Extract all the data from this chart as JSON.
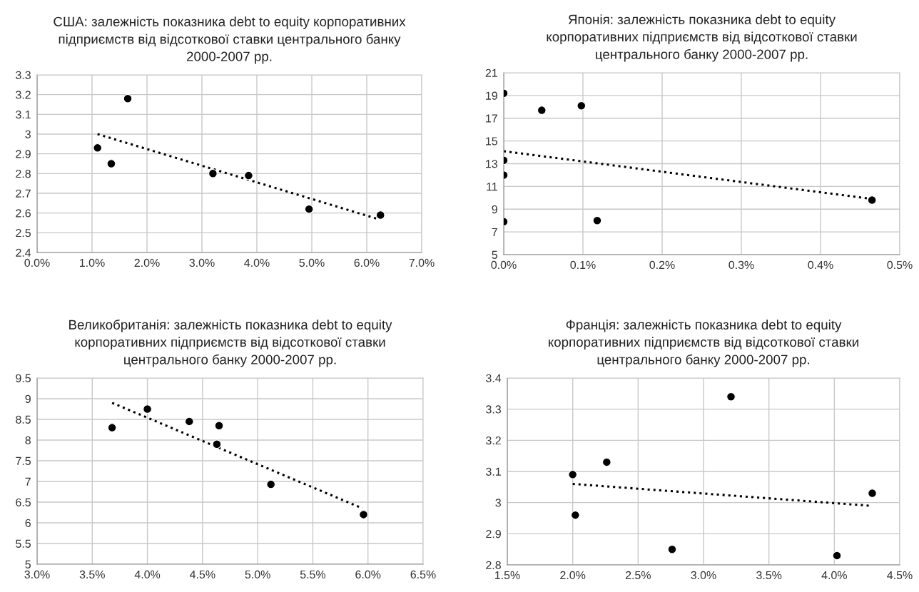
{
  "chart_data": [
    {
      "type": "scatter",
      "title": "США: залежність показника debt to equity корпоративних\nпідприємств від відсоткової ставки центрального банку\n2000-2007 рр.",
      "xlim": [
        0,
        7
      ],
      "xticks": [
        {
          "value": 0,
          "label": "0.0%"
        },
        {
          "value": 1,
          "label": "1.0%"
        },
        {
          "value": 2,
          "label": "2.0%"
        },
        {
          "value": 3,
          "label": "3.0%"
        },
        {
          "value": 4,
          "label": "4.0%"
        },
        {
          "value": 5,
          "label": "5.0%"
        },
        {
          "value": 6,
          "label": "6.0%"
        },
        {
          "value": 7,
          "label": "7.0%"
        }
      ],
      "ylim": [
        2.4,
        3.3
      ],
      "yticks": [
        2.4,
        2.5,
        2.6,
        2.7,
        2.8,
        2.9,
        3,
        3.1,
        3.2,
        3.3
      ],
      "grid": true,
      "series": [
        {
          "type": "scatter",
          "color": "#000000",
          "marker": "circle",
          "x": [
            1.1,
            1.35,
            1.65,
            3.2,
            3.85,
            4.95,
            6.25
          ],
          "values": [
            2.93,
            2.85,
            3.18,
            2.8,
            2.79,
            2.62,
            2.59
          ]
        },
        {
          "type": "line",
          "color": "#000000",
          "line_style": "dotted",
          "x": [
            1.1,
            6.2
          ],
          "values": [
            3.0,
            2.57
          ]
        }
      ]
    },
    {
      "type": "scatter",
      "title": "Японія: залежність показника debt to equity\nкорпоративних підприємств від відсоткової ставки\nцентрального банку 2000-2007 рр.",
      "xlim": [
        0,
        0.5
      ],
      "xticks": [
        {
          "value": 0,
          "label": "0.0%"
        },
        {
          "value": 0.1,
          "label": "0.1%"
        },
        {
          "value": 0.2,
          "label": "0.2%"
        },
        {
          "value": 0.3,
          "label": "0.3%"
        },
        {
          "value": 0.4,
          "label": "0.4%"
        },
        {
          "value": 0.5,
          "label": "0.5%"
        }
      ],
      "ylim": [
        5,
        21
      ],
      "yticks": [
        5,
        7,
        9,
        11,
        13,
        15,
        17,
        19,
        21
      ],
      "grid": true,
      "series": [
        {
          "type": "scatter",
          "color": "#000000",
          "marker": "circle",
          "x": [
            0,
            0,
            0,
            0,
            0.048,
            0.098,
            0.118,
            0.465
          ],
          "values": [
            19.2,
            13.3,
            12,
            7.9,
            17.7,
            18.1,
            8.0,
            9.8
          ]
        },
        {
          "type": "line",
          "color": "#000000",
          "line_style": "dotted",
          "x": [
            0,
            0.465
          ],
          "values": [
            14.1,
            9.9
          ]
        }
      ]
    },
    {
      "type": "scatter",
      "title": "Великобританія: залежність показника debt to equity\nкорпоративних підприємств від відсоткової ставки\nцентрального банку 2000-2007 рр.",
      "xlim": [
        3,
        6.5
      ],
      "xticks": [
        {
          "value": 3,
          "label": "3.0%"
        },
        {
          "value": 3.5,
          "label": "3.5%"
        },
        {
          "value": 4,
          "label": "4.0%"
        },
        {
          "value": 4.5,
          "label": "4.5%"
        },
        {
          "value": 5,
          "label": "5.0%"
        },
        {
          "value": 5.5,
          "label": "5.5%"
        },
        {
          "value": 6,
          "label": "6.0%"
        },
        {
          "value": 6.5,
          "label": "6.5%"
        }
      ],
      "ylim": [
        5,
        9.5
      ],
      "yticks": [
        5,
        5.5,
        6,
        6.5,
        7,
        7.5,
        8,
        8.5,
        9,
        9.5
      ],
      "grid": true,
      "series": [
        {
          "type": "scatter",
          "color": "#000000",
          "marker": "circle",
          "x": [
            3.68,
            4.0,
            4.38,
            4.65,
            4.63,
            5.12,
            5.96
          ],
          "values": [
            8.3,
            8.75,
            8.45,
            8.35,
            7.9,
            6.93,
            6.2
          ]
        },
        {
          "type": "line",
          "color": "#000000",
          "line_style": "dotted",
          "x": [
            3.68,
            5.95
          ],
          "values": [
            8.9,
            6.35
          ]
        }
      ]
    },
    {
      "type": "scatter",
      "title": "Франція: залежність показника debt to equity\nкорпоративних підприємств від відсоткової ставки\nцентрального банку 2000-2007 рр.",
      "xlim": [
        1.5,
        4.5
      ],
      "xticks": [
        {
          "value": 1.5,
          "label": "1.5%"
        },
        {
          "value": 2,
          "label": "2.0%"
        },
        {
          "value": 2.5,
          "label": "2.5%"
        },
        {
          "value": 3,
          "label": "3.0%"
        },
        {
          "value": 3.5,
          "label": "3.5%"
        },
        {
          "value": 4,
          "label": "4.0%"
        },
        {
          "value": 4.5,
          "label": "4.5%"
        }
      ],
      "ylim": [
        2.8,
        3.4
      ],
      "yticks": [
        2.8,
        2.9,
        3,
        3.1,
        3.2,
        3.3,
        3.4
      ],
      "grid": true,
      "series": [
        {
          "type": "scatter",
          "color": "#000000",
          "marker": "circle",
          "x": [
            2.0,
            2.02,
            2.26,
            2.76,
            3.21,
            4.02,
            4.29
          ],
          "values": [
            3.09,
            2.96,
            3.13,
            2.85,
            3.34,
            2.83,
            3.03
          ]
        },
        {
          "type": "line",
          "color": "#000000",
          "line_style": "dotted",
          "x": [
            2.0,
            4.27
          ],
          "values": [
            3.06,
            2.99
          ]
        }
      ]
    }
  ]
}
